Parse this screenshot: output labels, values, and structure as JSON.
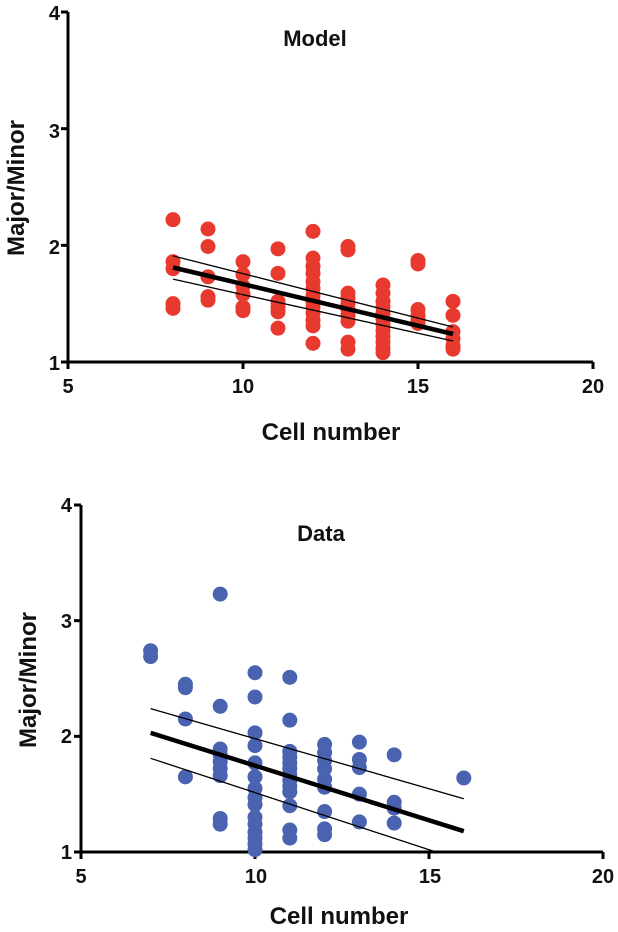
{
  "chart_data": [
    {
      "type": "scatter",
      "title": "Model",
      "xlabel": "Cell number",
      "ylabel": "Major/Minor",
      "xlim": [
        5,
        20
      ],
      "ylim": [
        1,
        4
      ],
      "xticks": [
        "5",
        "10",
        "15",
        "20"
      ],
      "yticks": [
        "1",
        "2",
        "3",
        "4"
      ],
      "grid": false,
      "legend": "none",
      "point_color": "#e8392e",
      "line_color": "#000000",
      "points": [
        {
          "x": 8,
          "y": 2.22
        },
        {
          "x": 8,
          "y": 1.86
        },
        {
          "x": 8,
          "y": 1.8
        },
        {
          "x": 8,
          "y": 1.5
        },
        {
          "x": 8,
          "y": 1.46
        },
        {
          "x": 9,
          "y": 2.14
        },
        {
          "x": 9,
          "y": 1.99
        },
        {
          "x": 9,
          "y": 1.73
        },
        {
          "x": 9,
          "y": 1.56
        },
        {
          "x": 9,
          "y": 1.53
        },
        {
          "x": 10,
          "y": 1.86
        },
        {
          "x": 10,
          "y": 1.75
        },
        {
          "x": 10,
          "y": 1.65
        },
        {
          "x": 10,
          "y": 1.58
        },
        {
          "x": 10,
          "y": 1.47
        },
        {
          "x": 10,
          "y": 1.44
        },
        {
          "x": 11,
          "y": 1.97
        },
        {
          "x": 11,
          "y": 1.76
        },
        {
          "x": 11,
          "y": 1.52
        },
        {
          "x": 11,
          "y": 1.47
        },
        {
          "x": 11,
          "y": 1.43
        },
        {
          "x": 11,
          "y": 1.29
        },
        {
          "x": 12,
          "y": 2.12
        },
        {
          "x": 12,
          "y": 1.89
        },
        {
          "x": 12,
          "y": 1.82
        },
        {
          "x": 12,
          "y": 1.76
        },
        {
          "x": 12,
          "y": 1.69
        },
        {
          "x": 12,
          "y": 1.63
        },
        {
          "x": 12,
          "y": 1.57
        },
        {
          "x": 12,
          "y": 1.52
        },
        {
          "x": 12,
          "y": 1.47
        },
        {
          "x": 12,
          "y": 1.42
        },
        {
          "x": 12,
          "y": 1.36
        },
        {
          "x": 12,
          "y": 1.31
        },
        {
          "x": 12,
          "y": 1.16
        },
        {
          "x": 13,
          "y": 1.99
        },
        {
          "x": 13,
          "y": 1.96
        },
        {
          "x": 13,
          "y": 1.59
        },
        {
          "x": 13,
          "y": 1.55
        },
        {
          "x": 13,
          "y": 1.5
        },
        {
          "x": 13,
          "y": 1.45
        },
        {
          "x": 13,
          "y": 1.4
        },
        {
          "x": 13,
          "y": 1.35
        },
        {
          "x": 13,
          "y": 1.17
        },
        {
          "x": 13,
          "y": 1.11
        },
        {
          "x": 14,
          "y": 1.66
        },
        {
          "x": 14,
          "y": 1.59
        },
        {
          "x": 14,
          "y": 1.52
        },
        {
          "x": 14,
          "y": 1.47
        },
        {
          "x": 14,
          "y": 1.42
        },
        {
          "x": 14,
          "y": 1.37
        },
        {
          "x": 14,
          "y": 1.32
        },
        {
          "x": 14,
          "y": 1.27
        },
        {
          "x": 14,
          "y": 1.22
        },
        {
          "x": 14,
          "y": 1.17
        },
        {
          "x": 14,
          "y": 1.12
        },
        {
          "x": 14,
          "y": 1.08
        },
        {
          "x": 15,
          "y": 1.87
        },
        {
          "x": 15,
          "y": 1.84
        },
        {
          "x": 15,
          "y": 1.45
        },
        {
          "x": 15,
          "y": 1.4
        },
        {
          "x": 15,
          "y": 1.36
        },
        {
          "x": 15,
          "y": 1.33
        },
        {
          "x": 16,
          "y": 1.52
        },
        {
          "x": 16,
          "y": 1.4
        },
        {
          "x": 16,
          "y": 1.26
        },
        {
          "x": 16,
          "y": 1.2
        },
        {
          "x": 16,
          "y": 1.14
        },
        {
          "x": 16,
          "y": 1.11
        }
      ],
      "fit_line": {
        "x": [
          8,
          16
        ],
        "y": [
          1.81,
          1.24
        ]
      },
      "ci_upper": {
        "x": [
          8,
          16
        ],
        "y": [
          1.91,
          1.3
        ]
      },
      "ci_lower": {
        "x": [
          8,
          16
        ],
        "y": [
          1.71,
          1.18
        ]
      }
    },
    {
      "type": "scatter",
      "title": "Data",
      "xlabel": "Cell number",
      "ylabel": "Major/Minor",
      "xlim": [
        5,
        20
      ],
      "ylim": [
        1,
        4
      ],
      "xticks": [
        "5",
        "10",
        "15",
        "20"
      ],
      "yticks": [
        "1",
        "2",
        "3",
        "4"
      ],
      "grid": false,
      "legend": "none",
      "point_color": "#4a63b0",
      "line_color": "#000000",
      "points": [
        {
          "x": 7,
          "y": 2.74
        },
        {
          "x": 7,
          "y": 2.69
        },
        {
          "x": 8,
          "y": 2.45
        },
        {
          "x": 8,
          "y": 2.42
        },
        {
          "x": 8,
          "y": 2.15
        },
        {
          "x": 8,
          "y": 1.65
        },
        {
          "x": 9,
          "y": 3.23
        },
        {
          "x": 9,
          "y": 2.26
        },
        {
          "x": 9,
          "y": 1.89
        },
        {
          "x": 9,
          "y": 1.84
        },
        {
          "x": 9,
          "y": 1.78
        },
        {
          "x": 9,
          "y": 1.72
        },
        {
          "x": 9,
          "y": 1.66
        },
        {
          "x": 9,
          "y": 1.29
        },
        {
          "x": 9,
          "y": 1.24
        },
        {
          "x": 10,
          "y": 2.55
        },
        {
          "x": 10,
          "y": 2.34
        },
        {
          "x": 10,
          "y": 2.03
        },
        {
          "x": 10,
          "y": 1.92
        },
        {
          "x": 10,
          "y": 1.77
        },
        {
          "x": 10,
          "y": 1.65
        },
        {
          "x": 10,
          "y": 1.55
        },
        {
          "x": 10,
          "y": 1.47
        },
        {
          "x": 10,
          "y": 1.41
        },
        {
          "x": 10,
          "y": 1.3
        },
        {
          "x": 10,
          "y": 1.24
        },
        {
          "x": 10,
          "y": 1.17
        },
        {
          "x": 10,
          "y": 1.12
        },
        {
          "x": 10,
          "y": 1.07
        },
        {
          "x": 10,
          "y": 1.02
        },
        {
          "x": 11,
          "y": 2.51
        },
        {
          "x": 11,
          "y": 2.14
        },
        {
          "x": 11,
          "y": 1.87
        },
        {
          "x": 11,
          "y": 1.82
        },
        {
          "x": 11,
          "y": 1.77
        },
        {
          "x": 11,
          "y": 1.72
        },
        {
          "x": 11,
          "y": 1.67
        },
        {
          "x": 11,
          "y": 1.62
        },
        {
          "x": 11,
          "y": 1.57
        },
        {
          "x": 11,
          "y": 1.52
        },
        {
          "x": 11,
          "y": 1.4
        },
        {
          "x": 11,
          "y": 1.19
        },
        {
          "x": 11,
          "y": 1.12
        },
        {
          "x": 12,
          "y": 1.93
        },
        {
          "x": 12,
          "y": 1.86
        },
        {
          "x": 12,
          "y": 1.79
        },
        {
          "x": 12,
          "y": 1.72
        },
        {
          "x": 12,
          "y": 1.63
        },
        {
          "x": 12,
          "y": 1.56
        },
        {
          "x": 12,
          "y": 1.35
        },
        {
          "x": 12,
          "y": 1.2
        },
        {
          "x": 12,
          "y": 1.15
        },
        {
          "x": 13,
          "y": 1.95
        },
        {
          "x": 13,
          "y": 1.8
        },
        {
          "x": 13,
          "y": 1.73
        },
        {
          "x": 13,
          "y": 1.5
        },
        {
          "x": 13,
          "y": 1.26
        },
        {
          "x": 14,
          "y": 1.84
        },
        {
          "x": 14,
          "y": 1.43
        },
        {
          "x": 14,
          "y": 1.38
        },
        {
          "x": 14,
          "y": 1.25
        },
        {
          "x": 16,
          "y": 1.64
        }
      ],
      "fit_line": {
        "x": [
          7,
          16
        ],
        "y": [
          2.03,
          1.18
        ]
      },
      "ci_upper": {
        "x": [
          7,
          16
        ],
        "y": [
          2.24,
          1.46
        ]
      },
      "ci_lower": {
        "x": [
          7,
          15.2
        ],
        "y": [
          1.81,
          1.0
        ]
      }
    }
  ]
}
